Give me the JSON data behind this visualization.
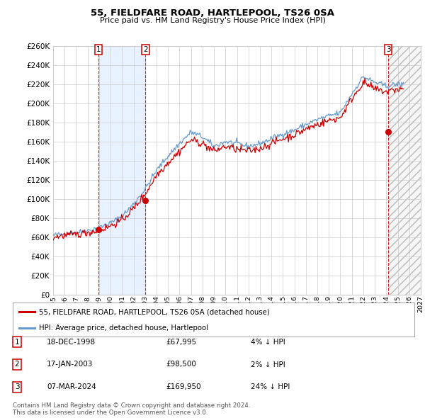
{
  "title": "55, FIELDFARE ROAD, HARTLEPOOL, TS26 0SA",
  "subtitle": "Price paid vs. HM Land Registry's House Price Index (HPI)",
  "address_label": "55, FIELDFARE ROAD, HARTLEPOOL, TS26 0SA (detached house)",
  "hpi_label": "HPI: Average price, detached house, Hartlepool",
  "footer": "Contains HM Land Registry data © Crown copyright and database right 2024.\nThis data is licensed under the Open Government Licence v3.0.",
  "transactions": [
    {
      "num": 1,
      "date": "18-DEC-1998",
      "price": 67995,
      "pct": "4%",
      "dir": "↓",
      "year": 1998.96
    },
    {
      "num": 2,
      "date": "17-JAN-2003",
      "price": 98500,
      "pct": "2%",
      "dir": "↓",
      "year": 2003.04
    },
    {
      "num": 3,
      "date": "07-MAR-2024",
      "price": 169950,
      "pct": "24%",
      "dir": "↓",
      "year": 2024.18
    }
  ],
  "ylim": [
    0,
    260000
  ],
  "yticks": [
    0,
    20000,
    40000,
    60000,
    80000,
    100000,
    120000,
    140000,
    160000,
    180000,
    200000,
    220000,
    240000,
    260000
  ],
  "xlim_start": 1995.0,
  "xlim_end": 2027.0,
  "xticks": [
    1995,
    1996,
    1997,
    1998,
    1999,
    2000,
    2001,
    2002,
    2003,
    2004,
    2005,
    2006,
    2007,
    2008,
    2009,
    2010,
    2011,
    2012,
    2013,
    2014,
    2015,
    2016,
    2017,
    2018,
    2019,
    2020,
    2021,
    2022,
    2023,
    2024,
    2025,
    2026,
    2027
  ],
  "price_color": "#cc0000",
  "hpi_color": "#6699cc",
  "box_color": "#cc0000",
  "shade_color": "#cce0ff",
  "hatch_color": "#bbbbbb",
  "background_color": "#ffffff",
  "grid_color": "#cccccc",
  "hpi_anchors": [
    [
      1995.0,
      62000
    ],
    [
      1996.0,
      63500
    ],
    [
      1997.0,
      65000
    ],
    [
      1998.0,
      67000
    ],
    [
      1999.0,
      70000
    ],
    [
      2000.0,
      75000
    ],
    [
      2001.0,
      82000
    ],
    [
      2002.0,
      95000
    ],
    [
      2003.0,
      110000
    ],
    [
      2004.0,
      130000
    ],
    [
      2005.0,
      145000
    ],
    [
      2006.0,
      158000
    ],
    [
      2007.0,
      170000
    ],
    [
      2008.0,
      165000
    ],
    [
      2009.0,
      155000
    ],
    [
      2010.0,
      160000
    ],
    [
      2011.0,
      158000
    ],
    [
      2012.0,
      155000
    ],
    [
      2013.0,
      158000
    ],
    [
      2014.0,
      163000
    ],
    [
      2015.0,
      168000
    ],
    [
      2016.0,
      172000
    ],
    [
      2017.0,
      178000
    ],
    [
      2018.0,
      183000
    ],
    [
      2019.0,
      187000
    ],
    [
      2020.0,
      190000
    ],
    [
      2021.0,
      210000
    ],
    [
      2022.0,
      228000
    ],
    [
      2023.0,
      222000
    ],
    [
      2024.0,
      218000
    ],
    [
      2025.0,
      220000
    ]
  ],
  "price_anchors": [
    [
      1995.0,
      60000
    ],
    [
      1996.0,
      62000
    ],
    [
      1997.0,
      63000
    ],
    [
      1998.0,
      65000
    ],
    [
      1999.0,
      67000
    ],
    [
      2000.0,
      72000
    ],
    [
      2001.0,
      78000
    ],
    [
      2002.0,
      90000
    ],
    [
      2003.0,
      105000
    ],
    [
      2004.0,
      125000
    ],
    [
      2005.0,
      138000
    ],
    [
      2006.0,
      150000
    ],
    [
      2007.0,
      162000
    ],
    [
      2008.0,
      158000
    ],
    [
      2009.0,
      150000
    ],
    [
      2010.0,
      155000
    ],
    [
      2011.0,
      152000
    ],
    [
      2012.0,
      150000
    ],
    [
      2013.0,
      153000
    ],
    [
      2014.0,
      158000
    ],
    [
      2015.0,
      163000
    ],
    [
      2016.0,
      167000
    ],
    [
      2017.0,
      173000
    ],
    [
      2018.0,
      178000
    ],
    [
      2019.0,
      182000
    ],
    [
      2020.0,
      185000
    ],
    [
      2021.0,
      205000
    ],
    [
      2022.0,
      222000
    ],
    [
      2023.0,
      215000
    ],
    [
      2024.0,
      212000
    ],
    [
      2025.0,
      215000
    ]
  ]
}
